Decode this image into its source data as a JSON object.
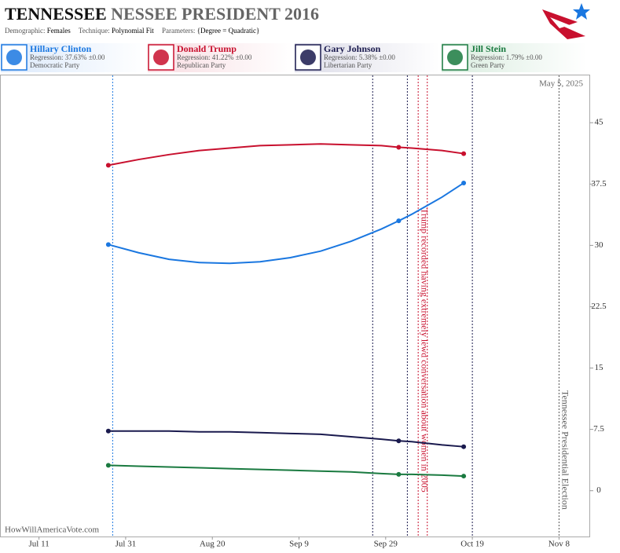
{
  "chart_data": {
    "type": "line",
    "title": "TENNESSEE",
    "title_suffix": "NESSEE PRESIDENT 2016",
    "subtitle": [
      {
        "label": "Demographic:",
        "value": "Females"
      },
      {
        "label": "Technique:",
        "value": "Polynomial Fit"
      },
      {
        "label": "Parameters:",
        "value": "{Degree = Quadratic}"
      }
    ],
    "date": "May 5, 2025",
    "source": "HowWillAmericaVote.com",
    "x": [
      209,
      216,
      223,
      230,
      237,
      244,
      251,
      258,
      265,
      272,
      276,
      279,
      286,
      291
    ],
    "xlim": [
      184,
      320
    ],
    "xticks": [
      {
        "value": 193,
        "label": "Jul 11"
      },
      {
        "value": 213,
        "label": "Jul 31"
      },
      {
        "value": 233,
        "label": "Aug 20"
      },
      {
        "value": 253,
        "label": "Sep 9"
      },
      {
        "value": 273,
        "label": "Sep 29"
      },
      {
        "value": 293,
        "label": "Oct 19"
      },
      {
        "value": 313,
        "label": "Nov 8"
      }
    ],
    "ylim": [
      -5.6,
      50.4
    ],
    "yticks": [
      0,
      7.5,
      15,
      22.5,
      30,
      37.5,
      45
    ],
    "series": [
      {
        "name": "Hillary Clinton",
        "color": "#1a77e0",
        "regression": "Regression: 37.63% ±0.00",
        "party": "Democratic Party",
        "values": [
          30.1,
          29.1,
          28.3,
          27.9,
          27.8,
          28.0,
          28.5,
          29.3,
          30.5,
          32.0,
          33.0,
          33.8,
          35.9,
          37.63
        ]
      },
      {
        "name": "Donald Trump",
        "color": "#c8102e",
        "regression": "Regression: 41.22% ±0.00",
        "party": "Republican Party",
        "values": [
          39.8,
          40.5,
          41.1,
          41.6,
          41.9,
          42.2,
          42.3,
          42.4,
          42.3,
          42.2,
          42.0,
          41.9,
          41.6,
          41.22
        ]
      },
      {
        "name": "Gary Johnson",
        "color": "#1a1a4e",
        "regression": "Regression: 5.38% ±0.00",
        "party": "Libertarian Party",
        "values": [
          7.3,
          7.3,
          7.3,
          7.2,
          7.2,
          7.1,
          7.0,
          6.9,
          6.6,
          6.3,
          6.1,
          6.0,
          5.6,
          5.38
        ]
      },
      {
        "name": "Jill Stein",
        "color": "#1a7a40",
        "regression": "Regression: 1.79% ±0.00",
        "party": "Green Party",
        "values": [
          3.1,
          3.0,
          2.9,
          2.8,
          2.7,
          2.6,
          2.5,
          2.4,
          2.3,
          2.1,
          2.0,
          2.0,
          1.9,
          1.79
        ]
      }
    ],
    "events": [
      {
        "x": 210,
        "color": "#1a77e0"
      },
      {
        "x": 270,
        "color": "#1a1a4e"
      },
      {
        "x": 278,
        "color": "#1a1a4e"
      },
      {
        "x": 280.5,
        "color": "#c8102e",
        "label": "Trump recorded having extremely lewd conversation about women in 2005"
      },
      {
        "x": 282.6,
        "color": "#c8102e"
      },
      {
        "x": 293,
        "color": "#1a1a4e"
      },
      {
        "x": 313,
        "color": "#555555",
        "label": "Tennessee Presidential Election"
      }
    ]
  }
}
